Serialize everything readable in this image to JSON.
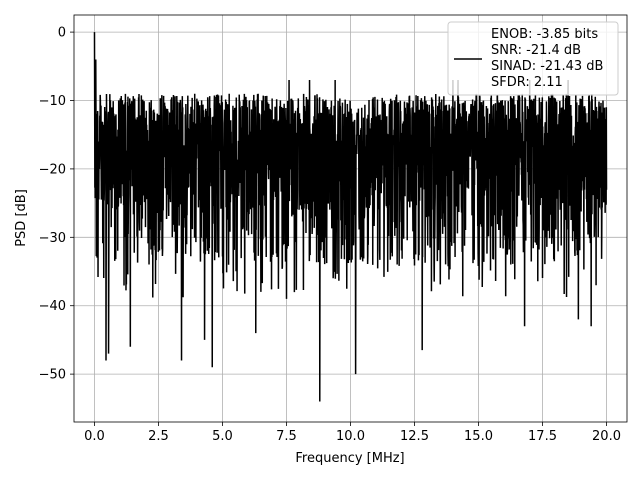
{
  "chart_data": {
    "type": "line",
    "xlabel": "Frequency [MHz]",
    "ylabel": "PSD [dB]",
    "xlim": [
      -0.8,
      20.8
    ],
    "ylim": [
      -57,
      2.5
    ],
    "xticks": [
      0.0,
      2.5,
      5.0,
      7.5,
      10.0,
      12.5,
      15.0,
      17.5,
      20.0
    ],
    "xtick_labels": [
      "0.0",
      "2.5",
      "5.0",
      "7.5",
      "10.0",
      "12.5",
      "15.0",
      "17.5",
      "20.0"
    ],
    "yticks": [
      0,
      -10,
      -20,
      -30,
      -40,
      -50
    ],
    "ytick_labels": [
      "0",
      "−10",
      "−20",
      "−30",
      "−40",
      "−50"
    ],
    "grid": true,
    "legend_position": "top-right",
    "legend": [
      "ENOB: -3.85 bits",
      "SNR: -21.4 dB",
      "SINAD: -21.43 dB",
      "SFDR: 2.11"
    ],
    "series": [
      {
        "color": "#000000",
        "noise_floor_db": -20,
        "noise_upper_db": -9,
        "peak": {
          "x": 0.0,
          "y": 0.0
        },
        "dips": [
          {
            "x": 0.45,
            "y": -48
          },
          {
            "x": 0.55,
            "y": -47
          },
          {
            "x": 1.4,
            "y": -46
          },
          {
            "x": 3.4,
            "y": -48
          },
          {
            "x": 4.3,
            "y": -45
          },
          {
            "x": 4.6,
            "y": -49
          },
          {
            "x": 6.3,
            "y": -44
          },
          {
            "x": 7.5,
            "y": -39
          },
          {
            "x": 8.8,
            "y": -54
          },
          {
            "x": 10.2,
            "y": -50
          },
          {
            "x": 12.8,
            "y": -46.5
          },
          {
            "x": 16.8,
            "y": -43
          },
          {
            "x": 18.9,
            "y": -42
          },
          {
            "x": 19.4,
            "y": -43
          }
        ],
        "high_peaks": [
          {
            "x": 0.05,
            "y": -4
          },
          {
            "x": 7.6,
            "y": -7
          },
          {
            "x": 8.4,
            "y": -7
          },
          {
            "x": 9.4,
            "y": -7
          },
          {
            "x": 14.0,
            "y": -7
          },
          {
            "x": 14.2,
            "y": -7
          },
          {
            "x": 17.0,
            "y": -7
          },
          {
            "x": 18.5,
            "y": -7
          }
        ]
      }
    ]
  }
}
